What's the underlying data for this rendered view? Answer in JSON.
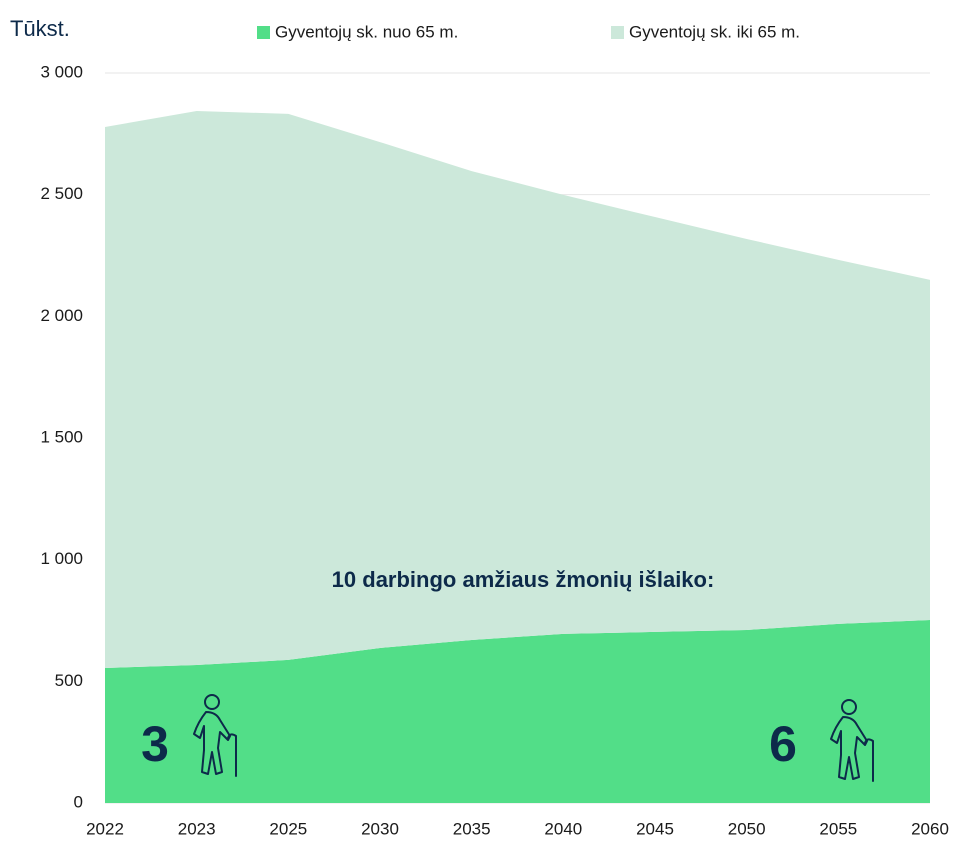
{
  "chart_data": {
    "type": "area",
    "stacked": true,
    "unit_label": "Tūkst.",
    "categories": [
      "2022",
      "2023",
      "2025",
      "2030",
      "2035",
      "2040",
      "2045",
      "2050",
      "2055",
      "2060"
    ],
    "series": [
      {
        "name": "Gyventojų sk. nuo 65 m.",
        "color": "#52de88",
        "values": [
          555,
          567,
          588,
          637,
          670,
          695,
          703,
          711,
          736,
          752
        ]
      },
      {
        "name": "Gyventojų sk. iki 65 m.",
        "color": "#cce8da",
        "values": [
          2223,
          2277,
          2244,
          2079,
          1927,
          1804,
          1705,
          1607,
          1496,
          1398
        ]
      }
    ],
    "ylim": [
      0,
      3000
    ],
    "yticks": [
      0,
      500,
      {
        "value": 1000,
        "label": "1 000"
      },
      {
        "value": 1500,
        "label": "1 500"
      },
      {
        "value": 2000,
        "label": "2 000"
      },
      {
        "value": 2500,
        "label": "2 500"
      },
      {
        "value": 3000,
        "label": "3 000"
      }
    ],
    "grid": true,
    "legend": "top",
    "annotations": [
      "10 darbingo amžiaus žmonių išlaiko:",
      "3",
      "6"
    ]
  }
}
